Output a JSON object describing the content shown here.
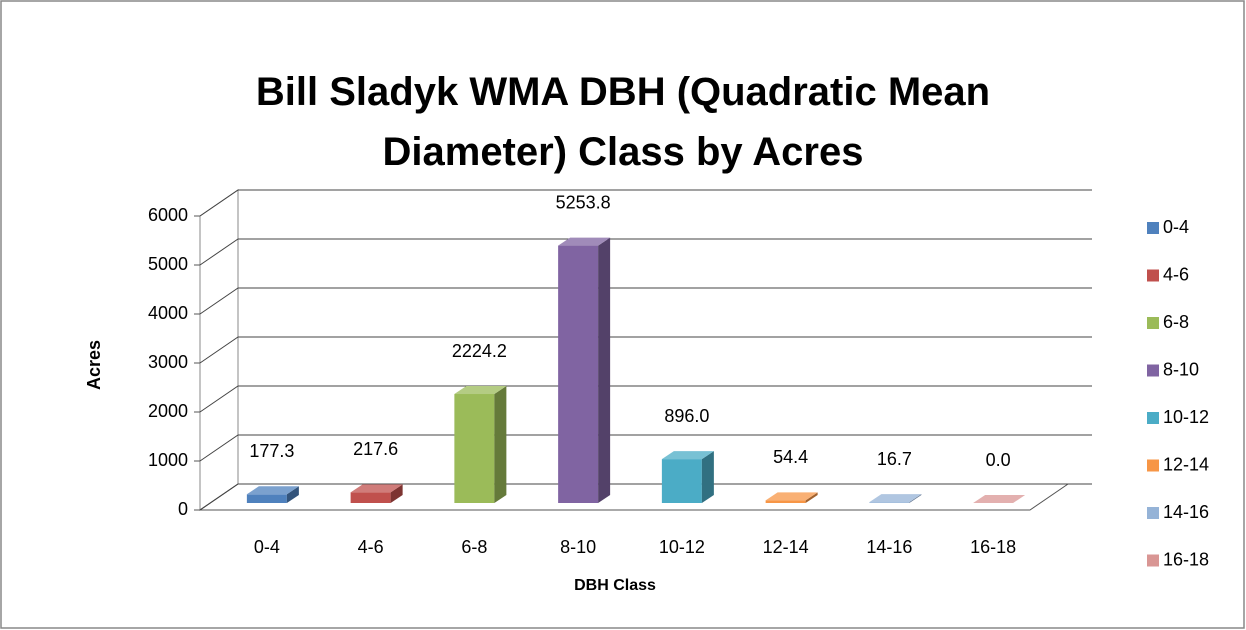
{
  "chart_data": {
    "type": "bar3d",
    "title": "Bill Sladyk WMA DBH (Quadratic Mean Diameter) Class by Acres",
    "x_label": "DBH Class",
    "y_label": "Acres",
    "categories": [
      "0-4",
      "4-6",
      "6-8",
      "8-10",
      "10-12",
      "12-14",
      "14-16",
      "16-18"
    ],
    "values": [
      177.3,
      217.6,
      2224.2,
      5253.8,
      896.0,
      54.4,
      16.7,
      0.0
    ],
    "value_labels": [
      "177.3",
      "217.6",
      "2224.2",
      "5253.8",
      "896.0",
      "54.4",
      "16.7",
      "0.0"
    ],
    "colors": [
      "#4f81bd",
      "#c0504d",
      "#9bbb59",
      "#8064a2",
      "#4bacc6",
      "#f79646",
      "#95b3d7",
      "#d99694"
    ],
    "ylim": [
      0,
      6000
    ],
    "yticks": [
      0,
      1000,
      2000,
      3000,
      4000,
      5000,
      6000
    ],
    "grid": true,
    "legend": "right"
  }
}
